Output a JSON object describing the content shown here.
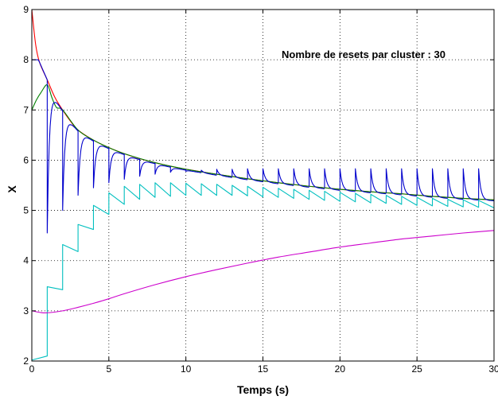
{
  "chart_data": {
    "type": "line",
    "title": "",
    "xlabel": "Temps (s)",
    "ylabel": "X",
    "annotation": "Nombre de resets par cluster : 30",
    "xlim": [
      0,
      30
    ],
    "ylim": [
      2,
      9
    ],
    "xticks": [
      0,
      5,
      10,
      15,
      20,
      25,
      30
    ],
    "yticks": [
      2,
      3,
      4,
      5,
      6,
      7,
      8,
      9
    ],
    "grid": true,
    "legend": "none",
    "series": [
      {
        "color": "#ff0000",
        "style": "smooth",
        "points": [
          [
            0,
            9
          ],
          [
            0.25,
            8.3
          ],
          [
            0.5,
            7.95
          ],
          [
            1,
            7.6
          ],
          [
            1.5,
            7.25
          ],
          [
            2,
            7.0
          ],
          [
            2.5,
            6.78
          ],
          [
            3,
            6.6
          ],
          [
            4,
            6.4
          ],
          [
            5,
            6.25
          ],
          [
            6,
            6.13
          ],
          [
            7,
            6.03
          ],
          [
            8,
            5.95
          ],
          [
            9,
            5.88
          ],
          [
            10,
            5.82
          ],
          [
            12,
            5.72
          ],
          [
            14,
            5.63
          ],
          [
            16,
            5.55
          ],
          [
            18,
            5.48
          ],
          [
            20,
            5.42
          ],
          [
            22,
            5.37
          ],
          [
            24,
            5.33
          ],
          [
            26,
            5.28
          ],
          [
            28,
            5.24
          ],
          [
            30,
            5.21
          ]
        ]
      },
      {
        "color": "#008000",
        "style": "smooth",
        "points": [
          [
            0,
            7
          ],
          [
            0.3,
            7.2
          ],
          [
            0.6,
            7.35
          ],
          [
            1,
            7.5
          ],
          [
            1.3,
            7.25
          ],
          [
            1.6,
            7.05
          ],
          [
            2,
            7.0
          ],
          [
            3,
            6.6
          ],
          [
            4,
            6.4
          ],
          [
            5,
            6.25
          ],
          [
            6,
            6.13
          ],
          [
            8,
            5.95
          ],
          [
            10,
            5.82
          ],
          [
            12,
            5.72
          ],
          [
            14,
            5.63
          ],
          [
            16,
            5.55
          ],
          [
            18,
            5.48
          ],
          [
            20,
            5.42
          ],
          [
            22,
            5.37
          ],
          [
            24,
            5.33
          ],
          [
            26,
            5.28
          ],
          [
            28,
            5.24
          ],
          [
            30,
            5.21
          ]
        ]
      },
      {
        "color": "#0000cc",
        "style": "reset",
        "start": [
          0,
          8
        ],
        "resets": [
          [
            1,
            4.55
          ],
          [
            2,
            5.0
          ],
          [
            3,
            5.3
          ],
          [
            4,
            5.45
          ],
          [
            5,
            5.55
          ],
          [
            6,
            5.62
          ],
          [
            7,
            5.68
          ],
          [
            8,
            5.72
          ],
          [
            9,
            5.76
          ],
          [
            10,
            5.78
          ],
          [
            11,
            5.8
          ],
          [
            12,
            5.82
          ],
          [
            13,
            5.82
          ],
          [
            14,
            5.83
          ],
          [
            15,
            5.83
          ],
          [
            16,
            5.83
          ],
          [
            17,
            5.83
          ],
          [
            18,
            5.83
          ],
          [
            19,
            5.83
          ],
          [
            20,
            5.83
          ],
          [
            21,
            5.83
          ],
          [
            22,
            5.83
          ],
          [
            23,
            5.83
          ],
          [
            24,
            5.83
          ],
          [
            25,
            5.83
          ],
          [
            26,
            5.83
          ],
          [
            27,
            5.83
          ],
          [
            28,
            5.83
          ],
          [
            29,
            5.83
          ]
        ]
      },
      {
        "color": "#00bfbf",
        "style": "sawtooth",
        "points": [
          [
            0,
            2.02
          ],
          [
            1,
            2.1
          ],
          [
            1,
            3.48
          ],
          [
            2,
            3.42
          ],
          [
            2,
            4.32
          ],
          [
            3,
            4.18
          ],
          [
            3,
            4.72
          ],
          [
            4,
            4.62
          ],
          [
            4,
            5.1
          ],
          [
            5,
            4.92
          ],
          [
            5,
            5.35
          ],
          [
            6,
            5.12
          ],
          [
            6,
            5.48
          ],
          [
            7,
            5.22
          ],
          [
            7,
            5.52
          ],
          [
            8,
            5.26
          ],
          [
            8,
            5.55
          ],
          [
            9,
            5.28
          ],
          [
            9,
            5.55
          ],
          [
            10,
            5.3
          ],
          [
            10,
            5.54
          ],
          [
            11,
            5.3
          ],
          [
            11,
            5.53
          ],
          [
            12,
            5.3
          ],
          [
            12,
            5.52
          ],
          [
            13,
            5.3
          ],
          [
            13,
            5.5
          ],
          [
            14,
            5.29
          ],
          [
            14,
            5.48
          ],
          [
            15,
            5.27
          ],
          [
            15,
            5.46
          ],
          [
            16,
            5.26
          ],
          [
            16,
            5.44
          ],
          [
            17,
            5.24
          ],
          [
            17,
            5.42
          ],
          [
            18,
            5.22
          ],
          [
            18,
            5.4
          ],
          [
            19,
            5.2
          ],
          [
            19,
            5.38
          ],
          [
            20,
            5.18
          ],
          [
            20,
            5.36
          ],
          [
            21,
            5.17
          ],
          [
            21,
            5.34
          ],
          [
            22,
            5.15
          ],
          [
            22,
            5.32
          ],
          [
            23,
            5.14
          ],
          [
            23,
            5.3
          ],
          [
            24,
            5.12
          ],
          [
            24,
            5.28
          ],
          [
            25,
            5.1
          ],
          [
            25,
            5.26
          ],
          [
            26,
            5.09
          ],
          [
            26,
            5.24
          ],
          [
            27,
            5.08
          ],
          [
            27,
            5.22
          ],
          [
            28,
            5.07
          ],
          [
            28,
            5.21
          ],
          [
            29,
            5.06
          ],
          [
            29,
            5.2
          ],
          [
            30,
            5.05
          ]
        ]
      },
      {
        "color": "#cc00cc",
        "style": "smooth",
        "points": [
          [
            0,
            3.0
          ],
          [
            0.5,
            2.97
          ],
          [
            1,
            2.96
          ],
          [
            2,
            3.0
          ],
          [
            3,
            3.07
          ],
          [
            4,
            3.15
          ],
          [
            5,
            3.24
          ],
          [
            6,
            3.34
          ],
          [
            8,
            3.52
          ],
          [
            10,
            3.68
          ],
          [
            12,
            3.82
          ],
          [
            14,
            3.95
          ],
          [
            16,
            4.07
          ],
          [
            18,
            4.17
          ],
          [
            20,
            4.27
          ],
          [
            22,
            4.35
          ],
          [
            24,
            4.43
          ],
          [
            26,
            4.49
          ],
          [
            28,
            4.55
          ],
          [
            30,
            4.6
          ]
        ]
      }
    ]
  }
}
